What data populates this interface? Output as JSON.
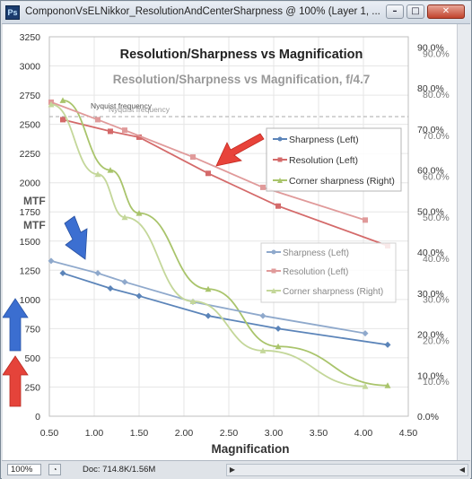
{
  "window": {
    "title": "CompononVsELNikkor_ResolutionAndCenterSharpness @ 100% (Layer 1, ...",
    "app_icon": "Ps",
    "buttons": {
      "minimize": "–",
      "maximize": "□",
      "close": "✕"
    }
  },
  "status": {
    "zoom": "100%",
    "doc": "Doc: 714.8K/1.56M"
  },
  "chart": {
    "title_main": "Resolution/Sharpness vs Magnification",
    "title_overlay": "Resolution/Sharpness vs Magnification, f/4.7",
    "nyquist_label": "Nyquist frequency",
    "xlabel": "Magnification",
    "ylabel_1": "MTF",
    "ylabel_2": "MTF",
    "left_ticks": [
      "3250",
      "3000",
      "2750",
      "2500",
      "2250",
      "2000",
      "1750",
      "1500",
      "1250",
      "1000",
      "750",
      "500",
      "250",
      "0"
    ],
    "x_ticks": [
      "0.50",
      "1.00",
      "1.50",
      "2.00",
      "2.50",
      "3.00",
      "3.50",
      "4.00",
      "4.50"
    ],
    "right_ticks_a": [
      "90.0%",
      "80.0%",
      "70.0%",
      "60.0%",
      "50.0%",
      "40.0%",
      "30.0%",
      "20.0%",
      "10.0%",
      "0.0%"
    ],
    "right_ticks_b": [
      "90.0%",
      "80.0%",
      "70.0%",
      "60.0%",
      "50.0%",
      "40.0%",
      "30.0%",
      "20.0%",
      "10.0%"
    ],
    "legend_a": [
      "Sharpness (Left)",
      "Resolution (Left)",
      "Corner sharpness (Right)"
    ],
    "legend_b": [
      "Sharpness (Left)",
      "Resolution (Left)",
      "Corner sharpness (Right)"
    ],
    "arrows": [
      "red-arrow-icon",
      "blue-arrow-icon",
      "blue-up-arrow-icon",
      "red-up-arrow-icon"
    ]
  },
  "chart_data": {
    "type": "line",
    "title": "Resolution/Sharpness vs Magnification",
    "xlabel": "Magnification",
    "ylabel": "MTF",
    "xlim": [
      0.5,
      4.5
    ],
    "ylim": [
      0,
      3250
    ],
    "y2lim": [
      0,
      92.5
    ],
    "legend": "right",
    "colors": {
      "sharpness": "#5b84b9",
      "resolution": "#d46a6a",
      "corner": "#a9c46b"
    },
    "series": [
      {
        "name": "Sharpness (Left)",
        "axis": "left",
        "x": [
          0.65,
          1.18,
          1.5,
          2.27,
          3.05,
          4.27
        ],
        "y": [
          1225,
          1095,
          1030,
          860,
          750,
          612
        ]
      },
      {
        "name": "Resolution (Left)",
        "axis": "left",
        "x": [
          0.65,
          1.18,
          1.5,
          2.27,
          3.05,
          4.27
        ],
        "y": [
          2540,
          2440,
          2390,
          2080,
          1800,
          1460
        ]
      },
      {
        "name": "Corner sharpness (Right)",
        "axis": "right",
        "x": [
          0.65,
          1.18,
          1.5,
          2.27,
          3.05,
          4.27
        ],
        "y": [
          77.0,
          60.0,
          49.5,
          31.0,
          17.0,
          7.5
        ]
      },
      {
        "name": "Sharpness (Left)",
        "axis": "left",
        "x": [
          0.52,
          1.04,
          1.34,
          2.1,
          2.88,
          4.02
        ],
        "y": [
          1330,
          1225,
          1150,
          980,
          860,
          710
        ]
      },
      {
        "name": "Resolution (Left)",
        "axis": "left",
        "x": [
          0.52,
          1.04,
          1.34,
          2.1,
          2.88,
          4.02
        ],
        "y": [
          2690,
          2540,
          2450,
          2220,
          1960,
          1680
        ]
      },
      {
        "name": "Corner sharpness (Right)",
        "axis": "right",
        "x": [
          0.52,
          1.04,
          1.34,
          2.1,
          2.88,
          4.02
        ],
        "y": [
          76.0,
          59.0,
          48.5,
          28.0,
          16.0,
          7.3
        ]
      }
    ],
    "nyquist_value": 2600
  }
}
